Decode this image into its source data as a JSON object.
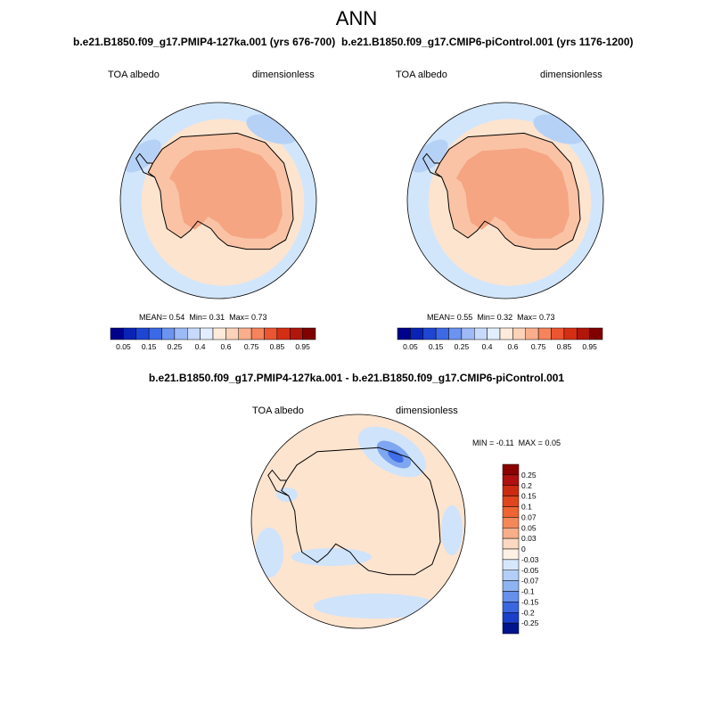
{
  "figure": {
    "season": "ANN",
    "colors": {
      "ocean_base": "#d2e6fb",
      "sea_ice_zone": "#fde4cf",
      "continent_interior": "#f5a582",
      "continent_mid": "#fac3a6",
      "diff_base": "#fde4cf",
      "diff_neg": "#cfe3fb",
      "diff_neg_strong": "#3f6ee6",
      "coastline": "#000000"
    }
  },
  "chart_data": [
    {
      "type": "heatmap",
      "projection": "south-polar-stereographic",
      "title": "b.e21.B1850.f09_g17.PMIP4-127ka.001 (yrs 676-700)",
      "variable": "TOA albedo",
      "units": "dimensionless",
      "stats": {
        "mean_label": "MEAN=",
        "mean": "0.54",
        "min_label": "Min=",
        "min": "0.31",
        "max_label": "Max=",
        "max": "0.73"
      },
      "colorbar": {
        "orientation": "horizontal",
        "levels": [
          0.05,
          0.15,
          0.25,
          0.4,
          0.6,
          0.75,
          0.85,
          0.95
        ],
        "tick_labels": [
          "0.05",
          "0.15",
          "0.25",
          "0.4",
          "0.6",
          "0.75",
          "0.85",
          "0.95"
        ],
        "colors": [
          "#00008b",
          "#0a23b4",
          "#1e46d2",
          "#3c69e6",
          "#6b93f0",
          "#9dbaf7",
          "#c7dafb",
          "#e2eefd",
          "#fdeadb",
          "#fcd2b8",
          "#f9ae8c",
          "#f5845c",
          "#ec5532",
          "#d42f14",
          "#b0160a",
          "#800000"
        ]
      }
    },
    {
      "type": "heatmap",
      "projection": "south-polar-stereographic",
      "title": "b.e21.B1850.f09_g17.CMIP6-piControl.001 (yrs 1176-1200)",
      "variable": "TOA albedo",
      "units": "dimensionless",
      "stats": {
        "mean_label": "MEAN=",
        "mean": "0.55",
        "min_label": "Min=",
        "min": "0.32",
        "max_label": "Max=",
        "max": "0.73"
      },
      "colorbar": {
        "orientation": "horizontal",
        "levels": [
          0.05,
          0.15,
          0.25,
          0.4,
          0.6,
          0.75,
          0.85,
          0.95
        ],
        "tick_labels": [
          "0.05",
          "0.15",
          "0.25",
          "0.4",
          "0.6",
          "0.75",
          "0.85",
          "0.95"
        ],
        "colors": [
          "#00008b",
          "#0a23b4",
          "#1e46d2",
          "#3c69e6",
          "#6b93f0",
          "#9dbaf7",
          "#c7dafb",
          "#e2eefd",
          "#fdeadb",
          "#fcd2b8",
          "#f9ae8c",
          "#f5845c",
          "#ec5532",
          "#d42f14",
          "#b0160a",
          "#800000"
        ]
      }
    },
    {
      "type": "heatmap",
      "projection": "south-polar-stereographic",
      "title": "b.e21.B1850.f09_g17.PMIP4-127ka.001 - b.e21.B1850.f09_g17.CMIP6-piControl.001",
      "variable": "TOA albedo",
      "units": "dimensionless",
      "stats": {
        "min_label": "MIN =",
        "min": "-0.11",
        "max_label": "MAX =",
        "max": "0.05"
      },
      "colorbar": {
        "orientation": "vertical",
        "levels": [
          0.25,
          0.2,
          0.15,
          0.1,
          0.07,
          0.05,
          0.03,
          0,
          -0.03,
          -0.05,
          -0.07,
          -0.1,
          -0.15,
          -0.2,
          -0.25
        ],
        "tick_labels": [
          "0.25",
          "0.2",
          "0.15",
          "0.1",
          "0.07",
          "0.05",
          "0.03",
          "0",
          "-0.03",
          "-0.05",
          "-0.07",
          "-0.1",
          "-0.15",
          "-0.2",
          "-0.25"
        ],
        "colors": [
          "#8b0000",
          "#b01010",
          "#cc2a10",
          "#e0451e",
          "#ee6433",
          "#f58858",
          "#f8ae88",
          "#fcd8c0",
          "#fdf0e4",
          "#d6e7fb",
          "#b3cff7",
          "#8eb3f2",
          "#6590ec",
          "#3a66e0",
          "#1b3fc8",
          "#00148c"
        ]
      }
    }
  ]
}
